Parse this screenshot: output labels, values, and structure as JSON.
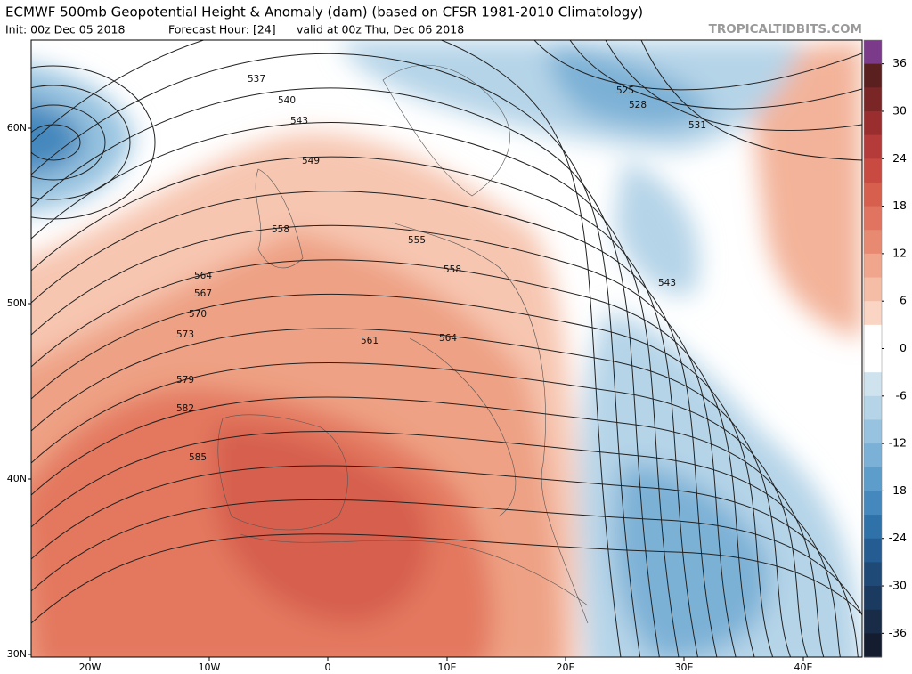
{
  "header": {
    "title": "ECMWF 500mb Geopotential Height & Anomaly (dam) (based on CFSR 1981-2010 Climatology)",
    "init": "Init: 00z Dec 05 2018",
    "forecast_hour": "Forecast Hour: [24]",
    "valid": "valid at 00z Thu, Dec 06 2018",
    "watermark": "TROPICALTIDBITS.COM"
  },
  "map": {
    "lat_labels": [
      "60N",
      "50N",
      "40N",
      "30N"
    ],
    "lon_labels": [
      "20W",
      "10W",
      "0",
      "10E",
      "20E",
      "30E",
      "40E"
    ],
    "contour_labels": [
      "537",
      "540",
      "543",
      "549",
      "555",
      "558",
      "558",
      "561",
      "564",
      "564",
      "567",
      "570",
      "573",
      "579",
      "582",
      "585",
      "525",
      "528",
      "531",
      "543"
    ]
  },
  "colorbar": {
    "range": [
      -39,
      39
    ],
    "ticks": [
      36,
      30,
      24,
      18,
      12,
      6,
      0,
      -6,
      -12,
      -18,
      -24,
      -30,
      -36
    ],
    "colors": [
      "#7b3a8a",
      "#5a1f1f",
      "#7a2626",
      "#9a2e2e",
      "#b53a3a",
      "#c84a40",
      "#d65f4e",
      "#e07460",
      "#e88a72",
      "#f0a68c",
      "#f5bda6",
      "#fad5c4",
      "#ffffff",
      "#ffffff",
      "#cfe3ef",
      "#b5d4e8",
      "#97c3e0",
      "#7bb1d6",
      "#5d9dcb",
      "#4588bd",
      "#2f72aa",
      "#255d92",
      "#1f4a78",
      "#1b3a5f",
      "#182c48",
      "#141d30"
    ]
  }
}
